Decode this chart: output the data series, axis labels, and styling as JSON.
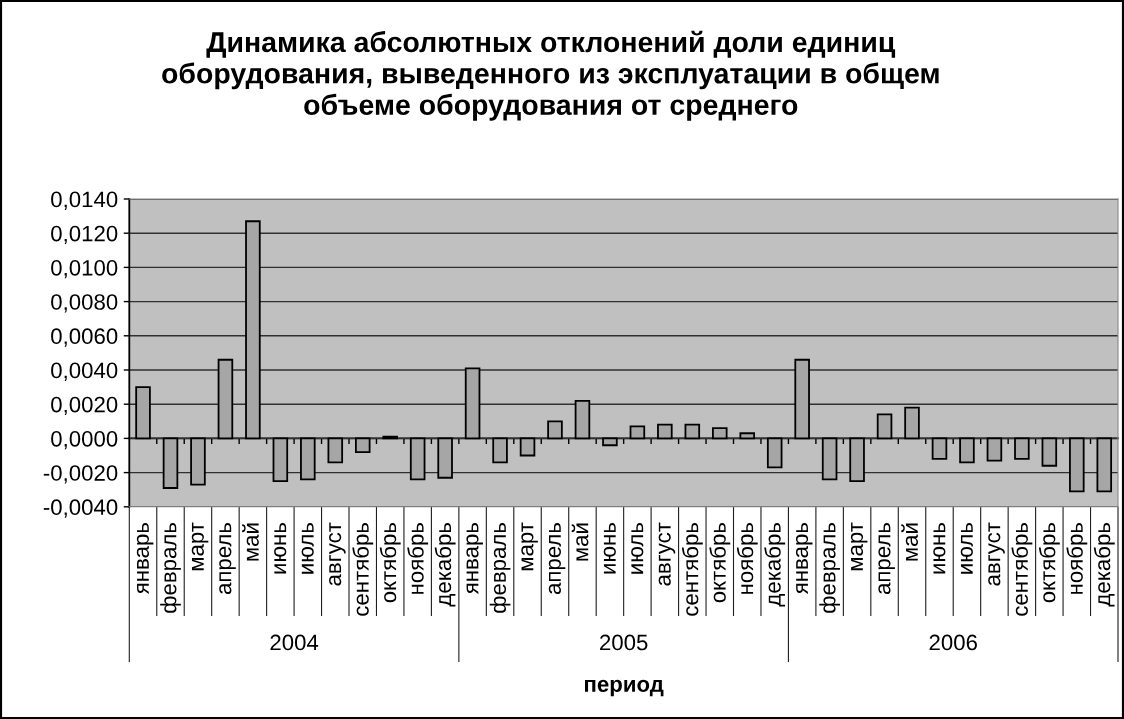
{
  "chart_data": {
    "type": "bar",
    "title": "Динамика абсолютных отклонений доли единиц\nоборудования, выведенного из эксплуатации в общем\nобъеме оборудования от среднего",
    "xlabel": "период",
    "categories": [
      "январь",
      "февраль",
      "март",
      "апрель",
      "май",
      "июнь",
      "июль",
      "август",
      "сентябрь",
      "октябрь",
      "ноябрь",
      "декабрь",
      "январь",
      "февраль",
      "март",
      "апрель",
      "май",
      "июнь",
      "июль",
      "август",
      "сентябрь",
      "октябрь",
      "ноябрь",
      "декабрь",
      "январь",
      "февраль",
      "март",
      "апрель",
      "май",
      "июнь",
      "июль",
      "август",
      "сентябрь",
      "октябрь",
      "ноябрь",
      "декабрь"
    ],
    "values": [
      0.003,
      -0.0029,
      -0.0027,
      0.0046,
      0.0127,
      -0.0025,
      -0.0024,
      -0.0014,
      -0.0008,
      0.0001,
      -0.0024,
      -0.0023,
      0.0041,
      -0.0014,
      -0.001,
      0.001,
      0.0022,
      -0.0004,
      0.0007,
      0.0008,
      0.0008,
      0.0006,
      0.0003,
      -0.0017,
      0.0046,
      -0.0024,
      -0.0025,
      0.0014,
      0.0018,
      -0.0012,
      -0.0014,
      -0.0013,
      -0.0012,
      -0.0016,
      -0.0031,
      -0.0031
    ],
    "color": "#a6a6a6",
    "ylim": [
      -0.004,
      0.014
    ],
    "yticks": [
      {
        "value": -0.004,
        "label": "-0,0040"
      },
      {
        "value": -0.002,
        "label": "-0,0020"
      },
      {
        "value": 0,
        "label": "0,0000"
      },
      {
        "value": 0.002,
        "label": "0,0020"
      },
      {
        "value": 0.004,
        "label": "0,0040"
      },
      {
        "value": 0.006,
        "label": "0,0060"
      },
      {
        "value": 0.008,
        "label": "0,0080"
      },
      {
        "value": 0.01,
        "label": "0,0100"
      },
      {
        "value": 0.012,
        "label": "0,0120"
      },
      {
        "value": 0.014,
        "label": "0,0140"
      }
    ],
    "grid": "y",
    "annotations": [
      "2004",
      "2005",
      "2006"
    ]
  }
}
